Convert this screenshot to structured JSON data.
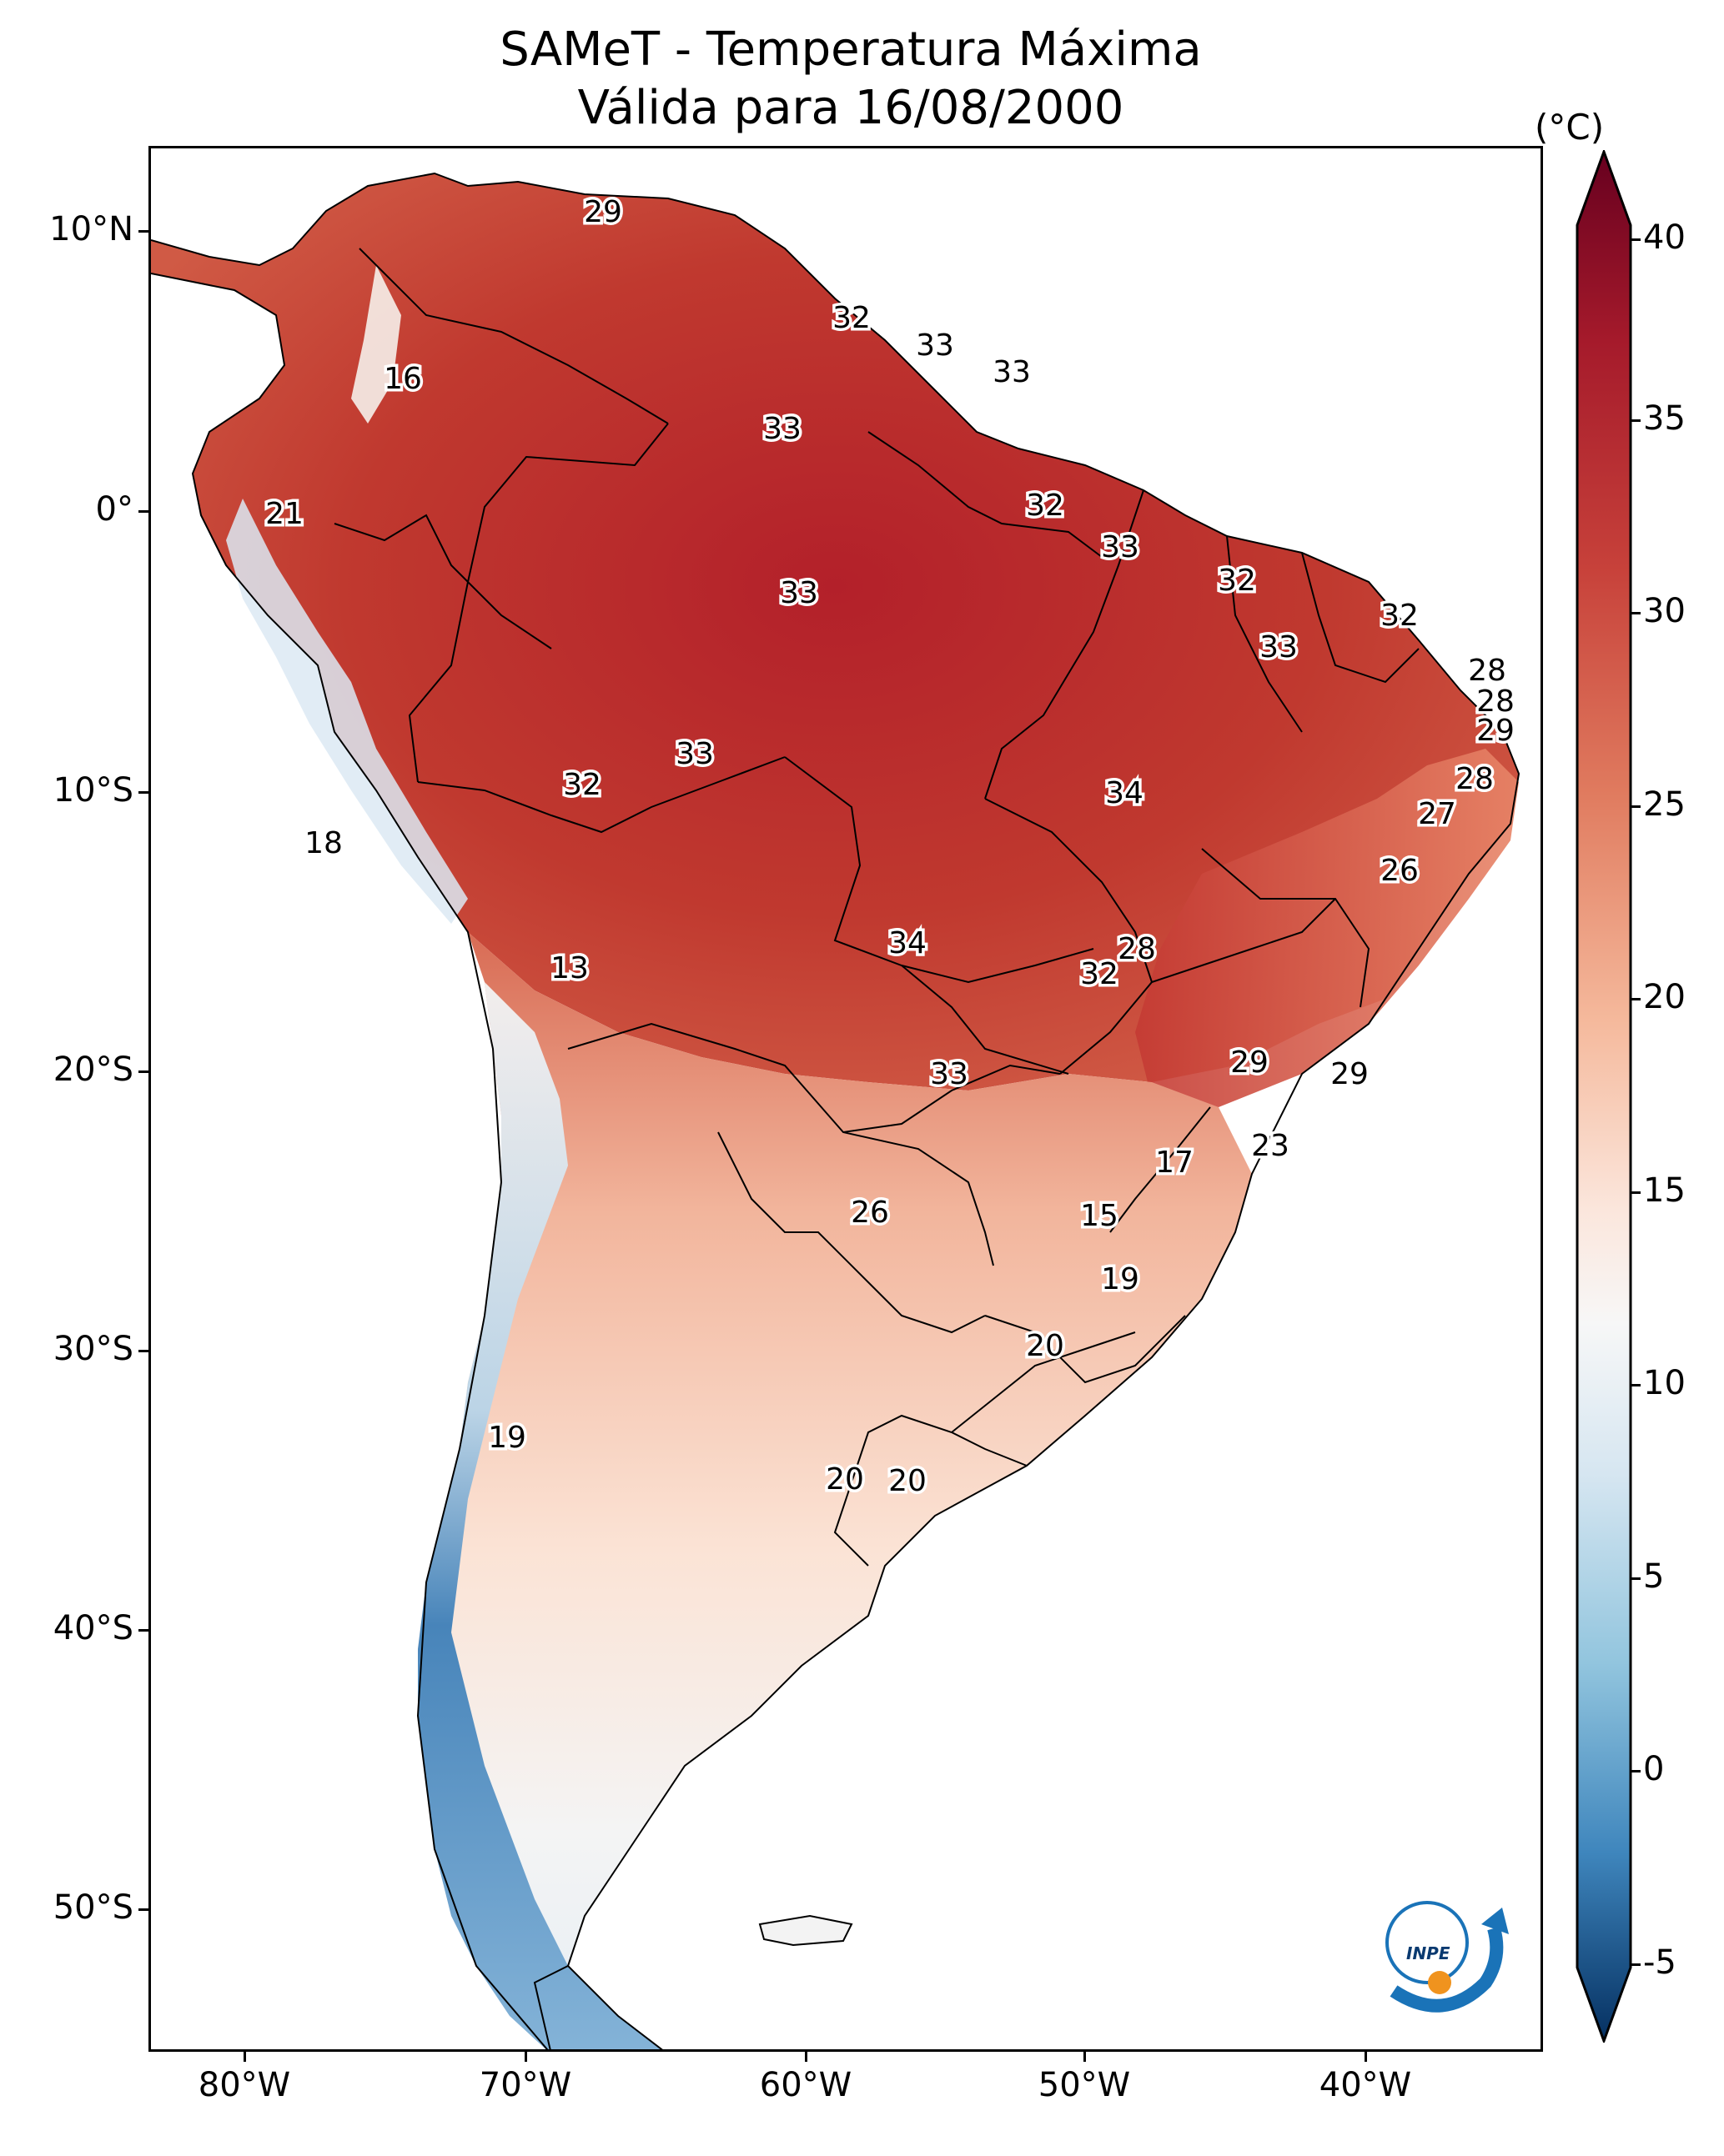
{
  "title": {
    "line1": "SAMeT - Temperatura Máxima",
    "line2": "Válida para 16/08/2000"
  },
  "colorbar": {
    "unit": "(°C)",
    "min": -7,
    "max": 42,
    "ticks": [
      "40",
      "35",
      "30",
      "25",
      "20",
      "15",
      "10",
      "5",
      "0",
      "-5"
    ]
  },
  "axes": {
    "lat_labels": [
      "10°N",
      "0°",
      "10°S",
      "20°S",
      "30°S",
      "40°S",
      "50°S"
    ],
    "lon_labels": [
      "80°W",
      "70°W",
      "60°W",
      "50°W",
      "40°W"
    ]
  },
  "contour_labels": [
    "29",
    "32",
    "33",
    "33",
    "16",
    "33",
    "21",
    "32",
    "33",
    "32",
    "33",
    "32",
    "33",
    "28",
    "28",
    "29",
    "33",
    "32",
    "28",
    "34",
    "27",
    "18",
    "26",
    "13",
    "28",
    "34",
    "32",
    "29",
    "33",
    "29",
    "23",
    "17",
    "26",
    "15",
    "19",
    "20",
    "19",
    "20",
    "20"
  ],
  "logo": {
    "text": "INPE",
    "icon": "inpe-logo-icon"
  },
  "colors": {
    "hot": "#b2182b",
    "mid": "#f7f7f7",
    "cold": "#2166ac"
  }
}
